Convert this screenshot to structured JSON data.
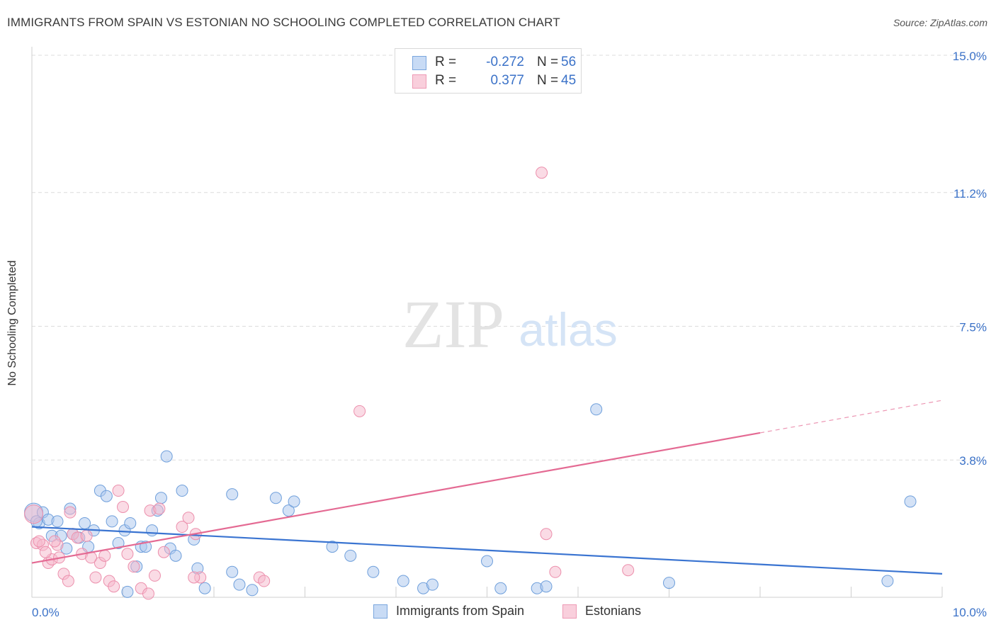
{
  "header": {
    "title": "IMMIGRANTS FROM SPAIN VS ESTONIAN NO SCHOOLING COMPLETED CORRELATION CHART",
    "source": "Source: ZipAtlas.com"
  },
  "watermark": {
    "zip": "ZIP",
    "atlas": "atlas"
  },
  "legend": {
    "rows": [
      {
        "r_label": "R =",
        "r_value": "-0.272",
        "n_label": "N =",
        "n_value": "56",
        "color": "#a9c6ee"
      },
      {
        "r_label": "R =",
        "r_value": "0.377",
        "n_label": "N =",
        "n_value": "45",
        "color": "#f5b7cb"
      }
    ]
  },
  "chart_data": {
    "type": "scatter",
    "title": "IMMIGRANTS FROM SPAIN VS ESTONIAN NO SCHOOLING COMPLETED CORRELATION CHART",
    "xlabel": "",
    "ylabel": "No Schooling Completed",
    "xlim": [
      0,
      10
    ],
    "ylim": [
      0,
      15
    ],
    "x_tick_labels": [
      "0.0%",
      "10.0%"
    ],
    "y_ticks": [
      3.8,
      7.5,
      11.2,
      15.0
    ],
    "y_tick_labels": [
      "3.8%",
      "7.5%",
      "11.2%",
      "15.0%"
    ],
    "grid": true,
    "legend_position": "top-center",
    "series": [
      {
        "name": "Immigrants from Spain",
        "color": "#a9c6ee",
        "edge": "#6f9fdb",
        "line_color": "#3a74d1",
        "trend": {
          "x": [
            0.0,
            10.0
          ],
          "y": [
            1.95,
            0.65
          ]
        },
        "points": [
          [
            0.02,
            2.35
          ],
          [
            0.08,
            2.05
          ],
          [
            0.12,
            2.35
          ],
          [
            0.18,
            2.15
          ],
          [
            0.22,
            1.7
          ],
          [
            0.28,
            2.1
          ],
          [
            0.32,
            1.7
          ],
          [
            0.38,
            1.35
          ],
          [
            0.42,
            2.45
          ],
          [
            0.45,
            1.75
          ],
          [
            0.52,
            1.65
          ],
          [
            0.58,
            2.05
          ],
          [
            0.62,
            1.4
          ],
          [
            0.68,
            1.85
          ],
          [
            0.75,
            2.95
          ],
          [
            0.82,
            2.8
          ],
          [
            0.88,
            2.1
          ],
          [
            0.95,
            1.5
          ],
          [
            1.02,
            1.85
          ],
          [
            1.08,
            2.05
          ],
          [
            1.15,
            0.85
          ],
          [
            1.2,
            1.4
          ],
          [
            1.25,
            1.4
          ],
          [
            1.32,
            1.85
          ],
          [
            1.38,
            2.4
          ],
          [
            1.42,
            2.75
          ],
          [
            1.48,
            3.9
          ],
          [
            1.52,
            1.35
          ],
          [
            1.58,
            1.15
          ],
          [
            1.65,
            2.95
          ],
          [
            1.78,
            1.6
          ],
          [
            1.82,
            0.8
          ],
          [
            2.2,
            2.85
          ],
          [
            2.2,
            0.7
          ],
          [
            2.28,
            0.35
          ],
          [
            2.42,
            0.2
          ],
          [
            2.68,
            2.75
          ],
          [
            2.82,
            2.4
          ],
          [
            2.88,
            2.65
          ],
          [
            3.3,
            1.4
          ],
          [
            3.5,
            1.15
          ],
          [
            3.75,
            0.7
          ],
          [
            4.08,
            0.45
          ],
          [
            4.3,
            0.25
          ],
          [
            4.4,
            0.35
          ],
          [
            5.0,
            1.0
          ],
          [
            5.15,
            0.25
          ],
          [
            5.55,
            0.25
          ],
          [
            5.65,
            0.3
          ],
          [
            6.2,
            5.2
          ],
          [
            7.0,
            0.4
          ],
          [
            9.4,
            0.45
          ],
          [
            9.65,
            2.65
          ],
          [
            1.05,
            0.15
          ],
          [
            1.9,
            0.25
          ],
          [
            0.05,
            2.1
          ]
        ]
      },
      {
        "name": "Estonians",
        "color": "#f5b7cb",
        "edge": "#ec8fac",
        "line_color": "#e46a93",
        "trend": {
          "x": [
            0.0,
            8.0
          ],
          "y": [
            0.95,
            4.55
          ]
        },
        "trend_dashed": {
          "x": [
            8.0,
            10.0
          ],
          "y": [
            4.55,
            5.45
          ]
        },
        "points": [
          [
            0.02,
            2.3
          ],
          [
            0.05,
            1.5
          ],
          [
            0.12,
            1.45
          ],
          [
            0.18,
            0.95
          ],
          [
            0.22,
            1.05
          ],
          [
            0.28,
            1.45
          ],
          [
            0.35,
            0.65
          ],
          [
            0.4,
            0.45
          ],
          [
            0.45,
            1.75
          ],
          [
            0.5,
            1.65
          ],
          [
            0.55,
            1.2
          ],
          [
            0.6,
            1.7
          ],
          [
            0.7,
            0.55
          ],
          [
            0.75,
            0.95
          ],
          [
            0.8,
            1.15
          ],
          [
            0.85,
            0.45
          ],
          [
            0.9,
            0.3
          ],
          [
            0.95,
            2.95
          ],
          [
            1.0,
            2.5
          ],
          [
            1.05,
            1.2
          ],
          [
            1.12,
            0.85
          ],
          [
            1.2,
            0.25
          ],
          [
            1.3,
            2.4
          ],
          [
            1.35,
            0.6
          ],
          [
            1.45,
            1.25
          ],
          [
            1.65,
            1.95
          ],
          [
            1.72,
            2.2
          ],
          [
            1.8,
            1.75
          ],
          [
            1.85,
            0.55
          ],
          [
            2.5,
            0.55
          ],
          [
            2.55,
            0.45
          ],
          [
            3.6,
            5.15
          ],
          [
            5.65,
            1.75
          ],
          [
            5.75,
            0.7
          ],
          [
            6.55,
            0.75
          ],
          [
            5.6,
            11.75
          ],
          [
            0.25,
            1.55
          ],
          [
            0.3,
            1.1
          ],
          [
            0.42,
            2.35
          ],
          [
            0.65,
            1.1
          ],
          [
            1.28,
            0.1
          ],
          [
            1.4,
            2.45
          ],
          [
            0.15,
            1.25
          ],
          [
            0.08,
            1.55
          ],
          [
            1.78,
            0.55
          ]
        ]
      }
    ]
  }
}
